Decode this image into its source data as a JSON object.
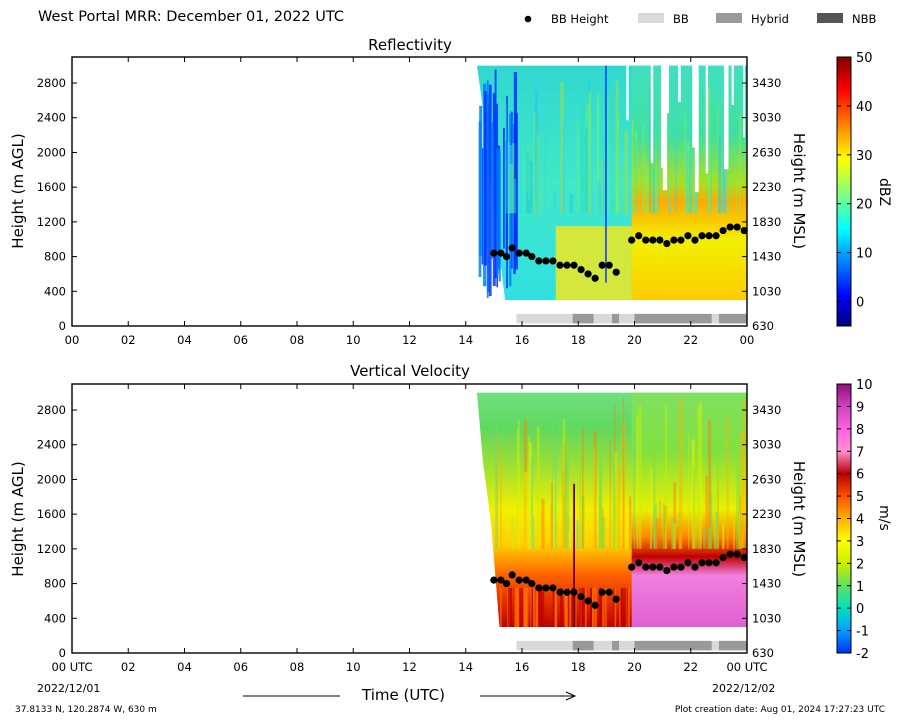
{
  "header": {
    "title": "West Portal MRR:  December 01, 2022 UTC",
    "legend": [
      {
        "label": "BB Height",
        "kind": "dot",
        "color": "#000000"
      },
      {
        "label": "BB",
        "kind": "box",
        "color": "#d9d9d9"
      },
      {
        "label": "Hybrid",
        "kind": "box",
        "color": "#999999"
      },
      {
        "label": "NBB",
        "kind": "box",
        "color": "#555555"
      }
    ]
  },
  "footer": {
    "location": "37.8133 N, 120.2874 W, 630 m",
    "creation": "Plot creation date: Aug 01, 2024 17:27:23 UTC",
    "time_label": "Time (UTC)",
    "date_start": "2022/12/01",
    "date_end": "2022/12/02"
  },
  "chart_data": [
    {
      "type": "heatmap",
      "title": "Reflectivity",
      "ylabel": "Height (m AGL)",
      "ylabel_right": "Height (m MSL)",
      "xlim": [
        0,
        24
      ],
      "ylim": [
        0,
        3100
      ],
      "xticks": [
        "00",
        "02",
        "04",
        "06",
        "08",
        "10",
        "12",
        "14",
        "16",
        "18",
        "20",
        "22",
        "00"
      ],
      "yticks": [
        0,
        400,
        800,
        1200,
        1600,
        2000,
        2400,
        2800
      ],
      "yticks_right": [
        "630",
        "1030",
        "1430",
        "1830",
        "2230",
        "2630",
        "3030",
        "3430"
      ],
      "colorbar": {
        "label": "dBZ",
        "min": -5,
        "max": 50,
        "ticks": [
          0,
          10,
          20,
          30,
          40,
          50
        ],
        "colormap": "jet"
      },
      "data_start_hour": 14.4,
      "bb_height": [
        [
          15.0,
          840
        ],
        [
          15.25,
          840
        ],
        [
          15.45,
          800
        ],
        [
          15.65,
          900
        ],
        [
          15.9,
          840
        ],
        [
          16.15,
          840
        ],
        [
          16.35,
          800
        ],
        [
          16.6,
          750
        ],
        [
          16.85,
          750
        ],
        [
          17.1,
          750
        ],
        [
          17.35,
          700
        ],
        [
          17.6,
          700
        ],
        [
          17.85,
          700
        ],
        [
          18.1,
          650
        ],
        [
          18.35,
          600
        ],
        [
          18.6,
          550
        ],
        [
          18.85,
          700
        ],
        [
          19.1,
          700
        ],
        [
          19.35,
          620
        ],
        [
          19.9,
          990
        ],
        [
          20.15,
          1040
        ],
        [
          20.4,
          990
        ],
        [
          20.65,
          990
        ],
        [
          20.9,
          990
        ],
        [
          21.15,
          950
        ],
        [
          21.4,
          990
        ],
        [
          21.65,
          990
        ],
        [
          21.9,
          1040
        ],
        [
          22.15,
          990
        ],
        [
          22.4,
          1040
        ],
        [
          22.65,
          1040
        ],
        [
          22.9,
          1040
        ],
        [
          23.15,
          1100
        ],
        [
          23.4,
          1140
        ],
        [
          23.65,
          1140
        ],
        [
          23.9,
          1100
        ]
      ],
      "bb_type": [
        {
          "start": 15.8,
          "end": 17.8,
          "type": "BB"
        },
        {
          "start": 17.8,
          "end": 18.55,
          "type": "Hybrid"
        },
        {
          "start": 18.55,
          "end": 19.2,
          "type": "BB"
        },
        {
          "start": 19.2,
          "end": 19.45,
          "type": "Hybrid"
        },
        {
          "start": 19.45,
          "end": 20.0,
          "type": "BB"
        },
        {
          "start": 20.0,
          "end": 22.75,
          "type": "Hybrid"
        },
        {
          "start": 22.75,
          "end": 23.0,
          "type": "BB"
        },
        {
          "start": 23.0,
          "end": 24.0,
          "type": "Hybrid"
        }
      ]
    },
    {
      "type": "heatmap",
      "title": "Vertical Velocity",
      "ylabel": "Height (m AGL)",
      "ylabel_right": "Height (m MSL)",
      "xlabel": "Time (UTC)",
      "xlim": [
        0,
        24
      ],
      "ylim": [
        0,
        3100
      ],
      "xticks": [
        "00 UTC",
        "02",
        "04",
        "06",
        "08",
        "10",
        "12",
        "14",
        "16",
        "18",
        "20",
        "22",
        "00 UTC"
      ],
      "yticks": [
        0,
        400,
        800,
        1200,
        1600,
        2000,
        2400,
        2800
      ],
      "yticks_right": [
        "630",
        "1030",
        "1430",
        "1830",
        "2230",
        "2630",
        "3030",
        "3430"
      ],
      "colorbar": {
        "label": "m/s",
        "min": -2,
        "max": 10,
        "ticks": [
          -2,
          -1,
          0,
          1,
          2,
          3,
          4,
          5,
          6,
          7,
          8,
          9,
          10
        ],
        "colormap": "velocity"
      },
      "data_start_hour": 14.4,
      "bb_height": [
        [
          15.0,
          840
        ],
        [
          15.25,
          840
        ],
        [
          15.45,
          800
        ],
        [
          15.65,
          900
        ],
        [
          15.9,
          840
        ],
        [
          16.15,
          840
        ],
        [
          16.35,
          800
        ],
        [
          16.6,
          750
        ],
        [
          16.85,
          750
        ],
        [
          17.1,
          750
        ],
        [
          17.35,
          700
        ],
        [
          17.6,
          700
        ],
        [
          17.85,
          700
        ],
        [
          18.1,
          650
        ],
        [
          18.35,
          600
        ],
        [
          18.6,
          550
        ],
        [
          18.85,
          700
        ],
        [
          19.1,
          700
        ],
        [
          19.35,
          620
        ],
        [
          19.9,
          990
        ],
        [
          20.15,
          1040
        ],
        [
          20.4,
          990
        ],
        [
          20.65,
          990
        ],
        [
          20.9,
          990
        ],
        [
          21.15,
          950
        ],
        [
          21.4,
          990
        ],
        [
          21.65,
          990
        ],
        [
          21.9,
          1040
        ],
        [
          22.15,
          990
        ],
        [
          22.4,
          1040
        ],
        [
          22.65,
          1040
        ],
        [
          22.9,
          1040
        ],
        [
          23.15,
          1100
        ],
        [
          23.4,
          1140
        ],
        [
          23.65,
          1140
        ],
        [
          23.9,
          1100
        ]
      ],
      "bb_type": [
        {
          "start": 15.8,
          "end": 17.8,
          "type": "BB"
        },
        {
          "start": 17.8,
          "end": 18.55,
          "type": "Hybrid"
        },
        {
          "start": 18.55,
          "end": 19.2,
          "type": "BB"
        },
        {
          "start": 19.2,
          "end": 19.45,
          "type": "Hybrid"
        },
        {
          "start": 19.45,
          "end": 20.0,
          "type": "BB"
        },
        {
          "start": 20.0,
          "end": 22.75,
          "type": "Hybrid"
        },
        {
          "start": 22.75,
          "end": 23.0,
          "type": "BB"
        },
        {
          "start": 23.0,
          "end": 24.0,
          "type": "Hybrid"
        }
      ]
    }
  ]
}
